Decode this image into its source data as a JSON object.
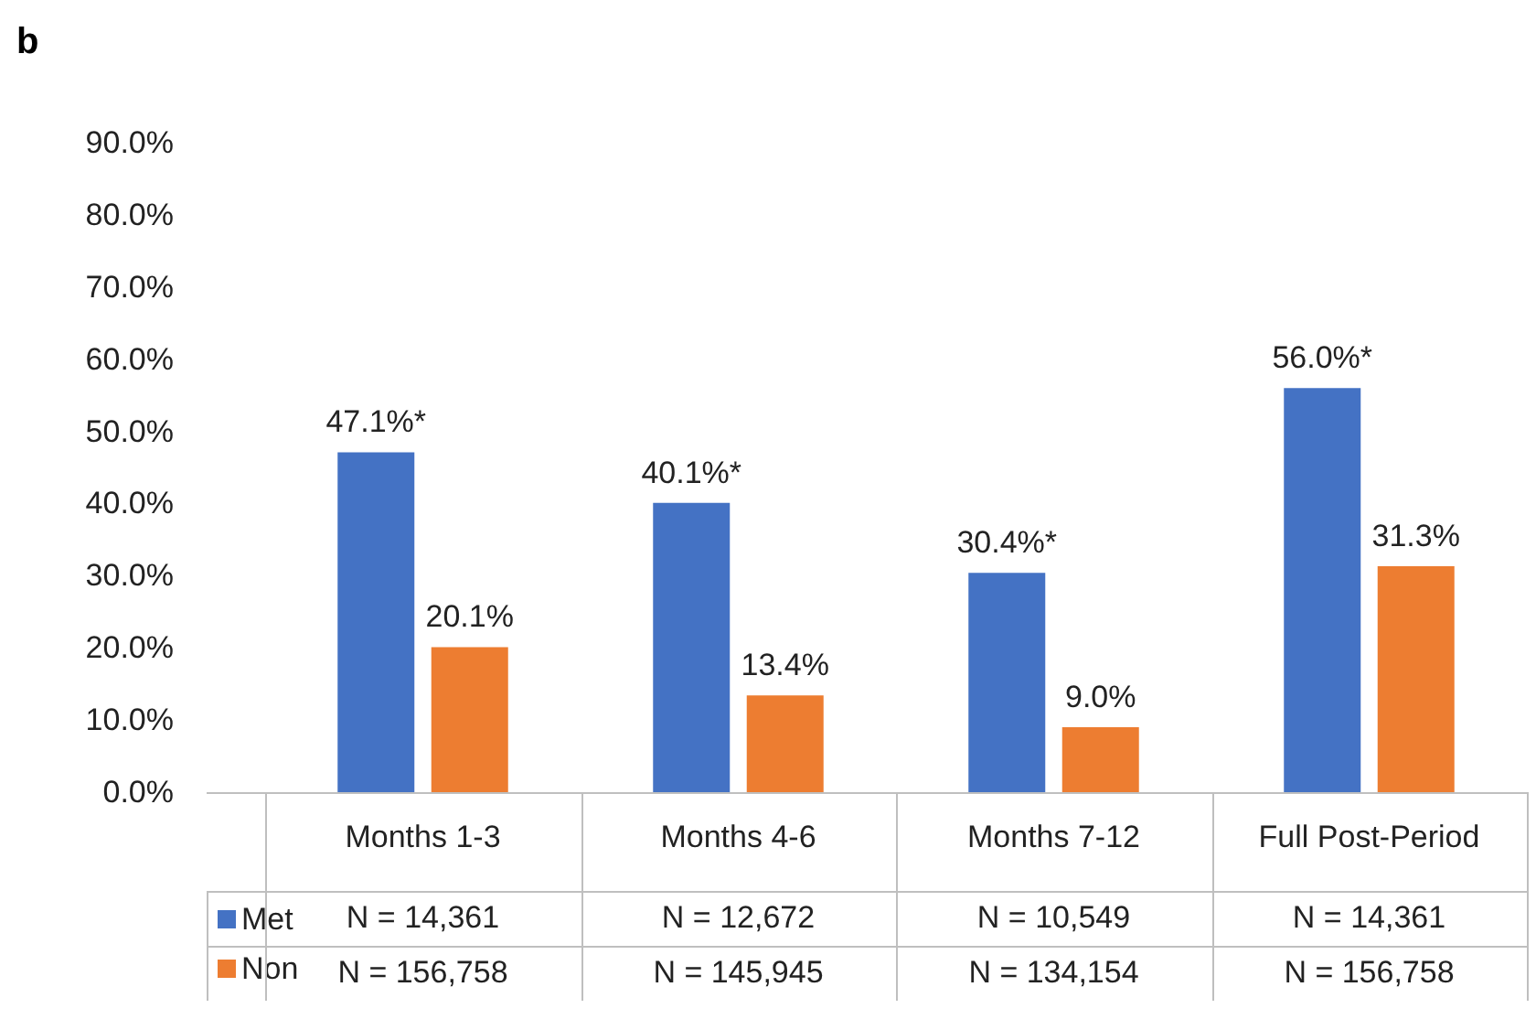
{
  "chart_data": {
    "type": "bar",
    "title": "b",
    "categories": [
      "Months 1-3",
      "Months 4-6",
      "Months 7-12",
      "Full Post-Period"
    ],
    "series": [
      {
        "name": "Met",
        "color": "#4472c4",
        "values": [
          47.1,
          40.1,
          30.4,
          56.0
        ],
        "value_labels": [
          "47.1%*",
          "40.1%*",
          "30.4%*",
          "56.0%*"
        ]
      },
      {
        "name": "Non",
        "color": "#ed7d31",
        "values": [
          20.1,
          13.4,
          9.0,
          31.3
        ],
        "value_labels": [
          "20.1%",
          "13.4%",
          "9.0%",
          "31.3%"
        ]
      }
    ],
    "ylim": [
      0,
      90
    ],
    "yticks": [
      {
        "value": 0,
        "label": "0.0%"
      },
      {
        "value": 10,
        "label": "10.0%"
      },
      {
        "value": 20,
        "label": "20.0%"
      },
      {
        "value": 30,
        "label": "30.0%"
      },
      {
        "value": 40,
        "label": "40.0%"
      },
      {
        "value": 50,
        "label": "50.0%"
      },
      {
        "value": 60,
        "label": "60.0%"
      },
      {
        "value": 70,
        "label": "70.0%"
      },
      {
        "value": 80,
        "label": "80.0%"
      },
      {
        "value": 90,
        "label": "90.0%"
      }
    ],
    "annotations": [
      "N = 14,361",
      "N = 12,672",
      "N = 10,549",
      "N = 14,361",
      "N = 156,758",
      "N = 145,945",
      "N = 134,154",
      "N = 156,758"
    ],
    "legend": "bottom left",
    "grid": false
  }
}
